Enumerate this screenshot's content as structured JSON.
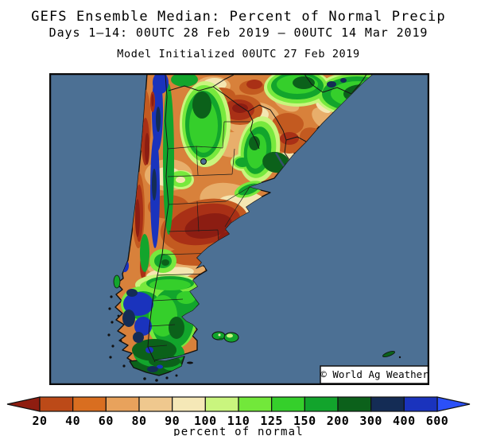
{
  "header": {
    "title": "GEFS Ensemble Median: Percent of Normal Precip",
    "subtitle": "Days 1–14: 00UTC 28 Feb 2019 – 00UTC 14 Mar 2019",
    "init_line": "Model Initialized 00UTC 27 Feb 2019"
  },
  "map": {
    "watermark": "© World Ag Weather",
    "ocean_color": "#4C7094"
  },
  "colorbar": {
    "ticks": [
      "20",
      "40",
      "60",
      "80",
      "90",
      "100",
      "110",
      "125",
      "150",
      "200",
      "300",
      "400",
      "600"
    ],
    "label": "percent of normal",
    "below_min_color": "#8F1D10",
    "segment_colors": [
      "#BC4A18",
      "#D96E20",
      "#E8A25C",
      "#EFC88E",
      "#F5E8B7",
      "#C9F57E",
      "#72E83A",
      "#35CF2B",
      "#12A42C",
      "#0C611B",
      "#142C55",
      "#1A33BD"
    ],
    "above_max_color": "#2B50F8"
  },
  "chart_data": {
    "type": "heatmap",
    "title": "GEFS Ensemble Median: Percent of Normal Precip",
    "legend_label": "percent of normal",
    "legend_values": [
      20,
      40,
      60,
      80,
      90,
      100,
      110,
      125,
      150,
      200,
      300,
      400,
      600
    ],
    "legend_note": "filled-contour map of percent-of-normal precipitation over southern South America; browns <100%, greens/blues >100%"
  }
}
